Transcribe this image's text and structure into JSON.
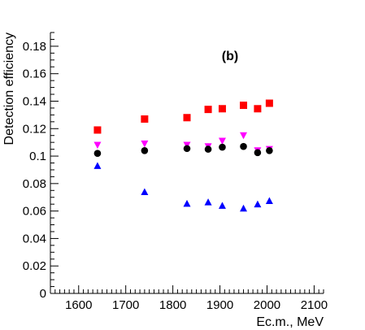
{
  "chart_data": {
    "type": "scatter",
    "title": "",
    "annotation": "(b)",
    "xlabel": "Ec.m., MeV",
    "ylabel": "Detection efficiency",
    "xlim": [
      1540,
      2120
    ],
    "ylim": [
      0,
      0.19
    ],
    "x_ticks": [
      1600,
      1700,
      1800,
      1900,
      2000,
      2100
    ],
    "x_tick_labels": [
      "1600",
      "1700",
      "1800",
      "1900",
      "2000",
      "2100"
    ],
    "y_ticks": [
      0,
      0.02,
      0.04,
      0.06,
      0.08,
      0.1,
      0.12,
      0.14,
      0.16,
      0.18
    ],
    "y_tick_labels": [
      "0",
      "0.02",
      "0.04",
      "0.06",
      "0.08",
      "0.1",
      "0.12",
      "0.14",
      "0.16",
      "0.18"
    ],
    "grid": false,
    "legend": "none",
    "series": [
      {
        "marker": "square",
        "color": "#ff0000",
        "points": [
          [
            1640,
            0.119
          ],
          [
            1740,
            0.127
          ],
          [
            1830,
            0.128
          ],
          [
            1875,
            0.134
          ],
          [
            1905,
            0.1345
          ],
          [
            1950,
            0.137
          ],
          [
            1980,
            0.1345
          ],
          [
            2005,
            0.1385
          ]
        ]
      },
      {
        "marker": "triangle-down",
        "color": "#ff00ff",
        "points": [
          [
            1640,
            0.108
          ],
          [
            1740,
            0.109
          ],
          [
            1830,
            0.108
          ],
          [
            1875,
            0.107
          ],
          [
            1905,
            0.111
          ],
          [
            1950,
            0.115
          ],
          [
            1980,
            0.104
          ],
          [
            2005,
            0.105
          ]
        ]
      },
      {
        "marker": "circle",
        "color": "#000000",
        "points": [
          [
            1640,
            0.102
          ],
          [
            1740,
            0.104
          ],
          [
            1830,
            0.1055
          ],
          [
            1875,
            0.105
          ],
          [
            1905,
            0.1065
          ],
          [
            1950,
            0.107
          ],
          [
            1980,
            0.1025
          ],
          [
            2005,
            0.104
          ]
        ]
      },
      {
        "marker": "triangle-up",
        "color": "#0000ff",
        "points": [
          [
            1640,
            0.093
          ],
          [
            1740,
            0.074
          ],
          [
            1830,
            0.0655
          ],
          [
            1875,
            0.0665
          ],
          [
            1905,
            0.064
          ],
          [
            1950,
            0.062
          ],
          [
            1980,
            0.065
          ],
          [
            2005,
            0.0675
          ]
        ]
      }
    ]
  }
}
